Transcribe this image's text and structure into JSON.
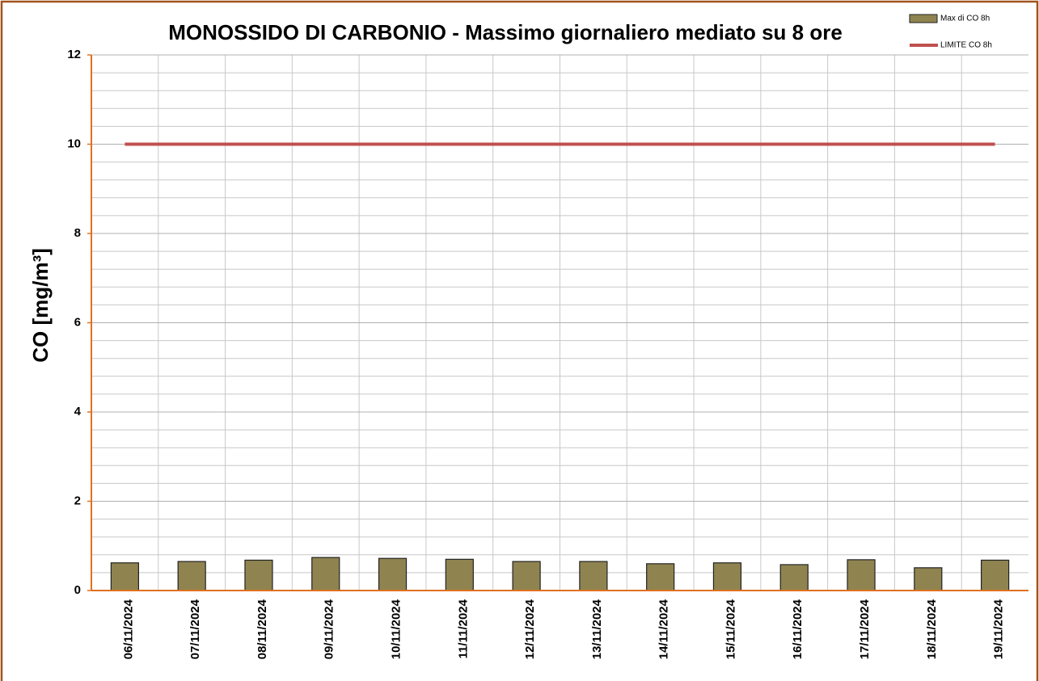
{
  "chart_data": {
    "type": "bar",
    "title": "MONOSSIDO DI CARBONIO - Massimo giornaliero mediato su 8 ore",
    "y_label": "CO [mg/m³]",
    "categories": [
      "06/11/2024",
      "07/11/2024",
      "08/11/2024",
      "09/11/2024",
      "10/11/2024",
      "11/11/2024",
      "12/11/2024",
      "13/11/2024",
      "14/11/2024",
      "15/11/2024",
      "16/11/2024",
      "17/11/2024",
      "18/11/2024",
      "19/11/2024"
    ],
    "series": [
      {
        "name": "Max di CO 8h",
        "type": "bar",
        "color": "#8f8450",
        "values": [
          0.62,
          0.65,
          0.68,
          0.74,
          0.72,
          0.7,
          0.65,
          0.65,
          0.6,
          0.62,
          0.58,
          0.69,
          0.51,
          0.68
        ]
      },
      {
        "name": "LIMITE CO 8h",
        "type": "line",
        "color": "#c0504d",
        "values": [
          10,
          10,
          10,
          10,
          10,
          10,
          10,
          10,
          10,
          10,
          10,
          10,
          10,
          10
        ]
      }
    ],
    "ylim": [
      0,
      12
    ],
    "yticks": [
      0,
      2,
      4,
      6,
      8,
      10,
      12
    ],
    "yminor": [
      0.4,
      0.8,
      1.2,
      1.6,
      2.4,
      2.8,
      3.2,
      3.6,
      4.4,
      4.8,
      5.2,
      5.6,
      6.4,
      6.8,
      7.2,
      7.6,
      8.4,
      8.8,
      9.2,
      9.6,
      10.4,
      10.8,
      11.2,
      11.6
    ],
    "grid": true,
    "legend": "top-right"
  }
}
